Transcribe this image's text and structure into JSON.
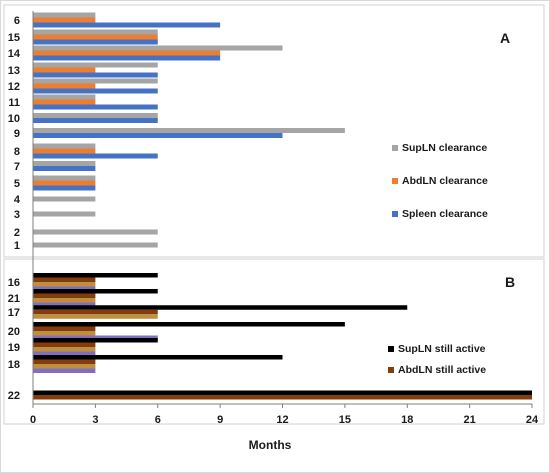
{
  "chart_data": [
    {
      "panel": "A",
      "type": "bar",
      "orientation": "horizontal",
      "categories": [
        "6",
        "15",
        "14",
        "13",
        "12",
        "11",
        "10",
        "9",
        "8",
        "7",
        "5",
        "4",
        "3",
        "2",
        "1"
      ],
      "series": [
        {
          "name": "SupLN clearance",
          "color": "#a5a5a5",
          "values": [
            3,
            6,
            12,
            6,
            6,
            3,
            6,
            15,
            3,
            3,
            3,
            3,
            3,
            6,
            6
          ]
        },
        {
          "name": "AbdLN clearance",
          "color": "#ed7d31",
          "values": [
            3,
            6,
            9,
            3,
            3,
            3,
            0,
            0,
            3,
            0,
            3,
            0,
            0,
            0,
            0
          ]
        },
        {
          "name": "Spleen clearance",
          "color": "#4472c4",
          "values": [
            9,
            6,
            9,
            6,
            6,
            6,
            6,
            12,
            6,
            3,
            3,
            0,
            0,
            0,
            0
          ]
        }
      ],
      "legend_position": "right"
    },
    {
      "panel": "B",
      "type": "bar",
      "orientation": "horizontal",
      "categories": [
        "16",
        "21",
        "17",
        "20",
        "19",
        "18",
        "22"
      ],
      "series": [
        {
          "name": "SupLN still active",
          "color": "#000000",
          "values": [
            6,
            6,
            18,
            15,
            6,
            12,
            24
          ]
        },
        {
          "name": "AbdLN still active",
          "color": "#843c0c",
          "values": [
            3,
            3,
            6,
            3,
            3,
            3,
            24
          ]
        },
        {
          "color": "#bf8f3f",
          "values": [
            3,
            3,
            6,
            3,
            3,
            3,
            0
          ]
        },
        {
          "color": "#7f6fbf",
          "values": [
            3,
            3,
            0,
            6,
            3,
            3,
            0
          ]
        }
      ],
      "legend_position": "right"
    }
  ],
  "axis": {
    "xlabel": "Months",
    "xlim": [
      0,
      24
    ],
    "xticks": [
      "0",
      "3",
      "6",
      "9",
      "12",
      "15",
      "18",
      "21",
      "24"
    ]
  },
  "panel_labels": [
    "A",
    "B"
  ]
}
